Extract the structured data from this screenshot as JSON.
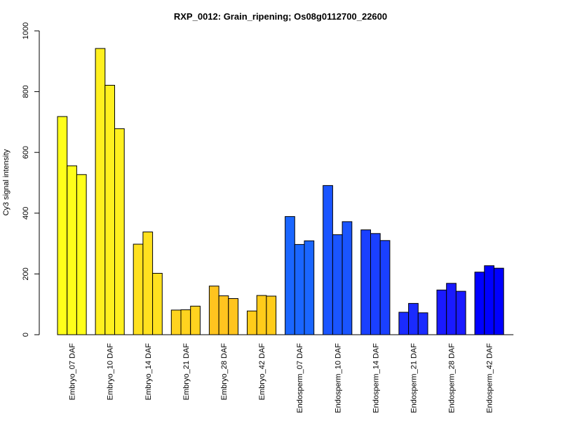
{
  "chart_data": {
    "type": "bar",
    "title": "RXP_0012: Grain_ripening; Os08g0112700_22600",
    "xlabel": "",
    "ylabel": "Cy3 signal intensity",
    "ylim": [
      0,
      1000
    ],
    "yticks": [
      0,
      200,
      400,
      600,
      800,
      1000
    ],
    "grid": false,
    "categories": [
      "Embryo_07 DAF",
      "Embryo_10 DAF",
      "Embryo_14 DAF",
      "Embryo_21 DAF",
      "Embryo_28 DAF",
      "Embryo_42 DAF",
      "Endosperm_07 DAF",
      "Endosperm_10 DAF",
      "Endosperm_14 DAF",
      "Endosperm_21 DAF",
      "Endosperm_28 DAF",
      "Endosperm_42 DAF"
    ],
    "replicates_per_category": 3,
    "values": [
      [
        718,
        556,
        527
      ],
      [
        942,
        821,
        678
      ],
      [
        298,
        338,
        202
      ],
      [
        81,
        82,
        94
      ],
      [
        160,
        128,
        119
      ],
      [
        78,
        129,
        127
      ],
      [
        389,
        297,
        309
      ],
      [
        491,
        329,
        372
      ],
      [
        345,
        333,
        310
      ],
      [
        74,
        103,
        72
      ],
      [
        147,
        169,
        143
      ],
      [
        206,
        227,
        219
      ]
    ],
    "colors": [
      "#FFFF1A",
      "#FFF01F",
      "#FFE11F",
      "#FFD31F",
      "#FFC41F",
      "#FFCC1A",
      "#1A66FF",
      "#1A55FF",
      "#1A40FF",
      "#1A2BFF",
      "#1A1AFF",
      "#0000FF"
    ]
  }
}
